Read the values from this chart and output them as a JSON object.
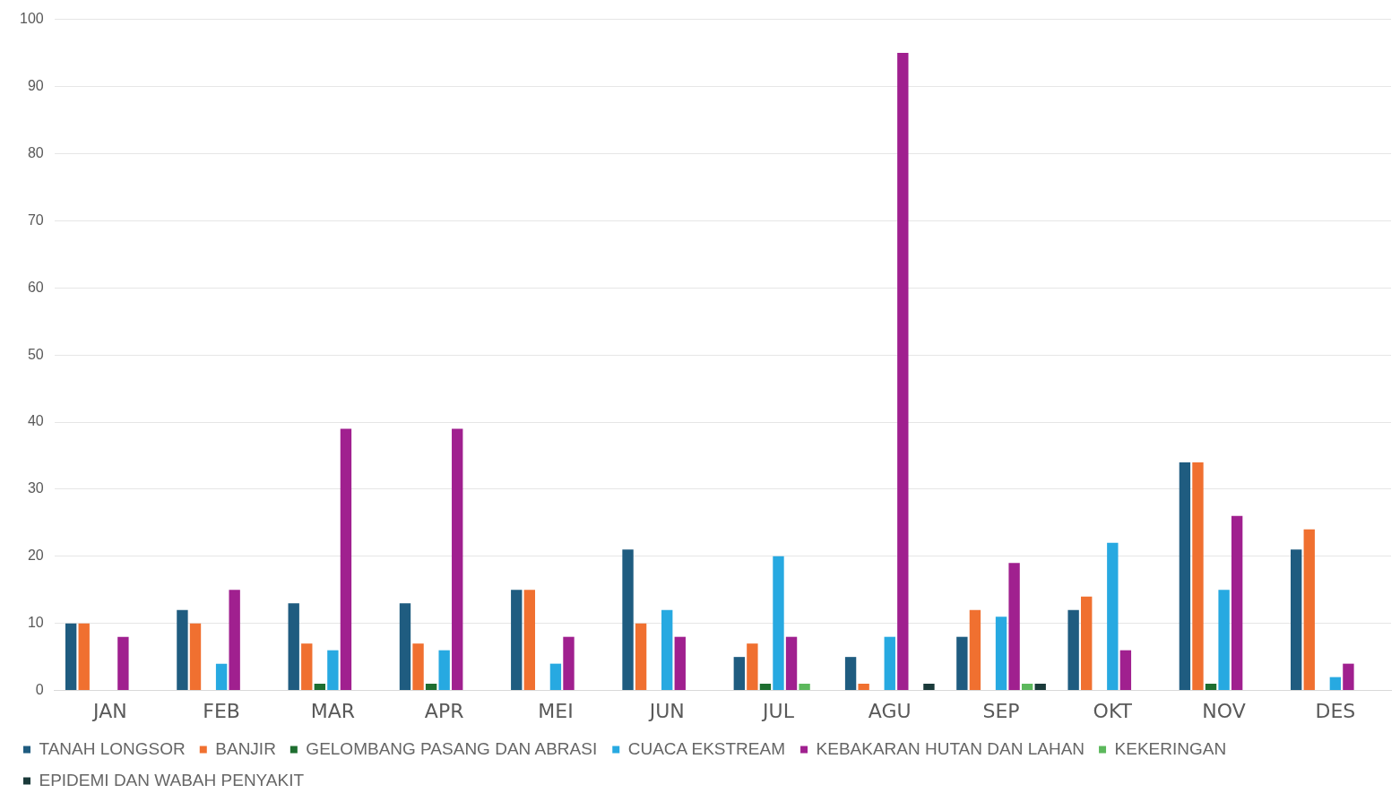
{
  "chart_data": {
    "type": "bar",
    "categories": [
      "JAN",
      "FEB",
      "MAR",
      "APR",
      "MEI",
      "JUN",
      "JUL",
      "AGU",
      "SEP",
      "OKT",
      "NOV",
      "DES"
    ],
    "series": [
      {
        "name": "TANAH LONGSOR",
        "color": "#1f5c80",
        "values": [
          10,
          12,
          13,
          13,
          15,
          21,
          5,
          5,
          8,
          12,
          34,
          21
        ]
      },
      {
        "name": "BANJIR",
        "color": "#f07030",
        "values": [
          10,
          10,
          7,
          7,
          15,
          10,
          7,
          1,
          12,
          14,
          34,
          24
        ]
      },
      {
        "name": "GELOMBANG PASANG DAN ABRASI",
        "color": "#1e6e30",
        "values": [
          0,
          0,
          1,
          1,
          0,
          0,
          1,
          0,
          0,
          0,
          1,
          0
        ]
      },
      {
        "name": "CUACA EKSTREAM",
        "color": "#27a9e1",
        "values": [
          0,
          4,
          6,
          6,
          4,
          12,
          20,
          8,
          11,
          22,
          15,
          2
        ]
      },
      {
        "name": "KEBAKARAN HUTAN DAN LAHAN",
        "color": "#a0208f",
        "values": [
          8,
          15,
          39,
          39,
          8,
          8,
          8,
          95,
          19,
          6,
          26,
          4
        ]
      },
      {
        "name": "KEKERINGAN",
        "color": "#5cb85c",
        "values": [
          0,
          0,
          0,
          0,
          0,
          0,
          1,
          0,
          1,
          0,
          0,
          0
        ]
      },
      {
        "name": "EPIDEMI DAN WABAH PENYAKIT",
        "color": "#1a3a3a",
        "values": [
          0,
          0,
          0,
          0,
          0,
          0,
          0,
          1,
          1,
          0,
          0,
          0
        ]
      }
    ],
    "ylim": [
      0,
      100
    ],
    "yticks": [
      0,
      10,
      20,
      30,
      40,
      50,
      60,
      70,
      80,
      90,
      100
    ],
    "grid": "y",
    "legend": "bottom"
  }
}
